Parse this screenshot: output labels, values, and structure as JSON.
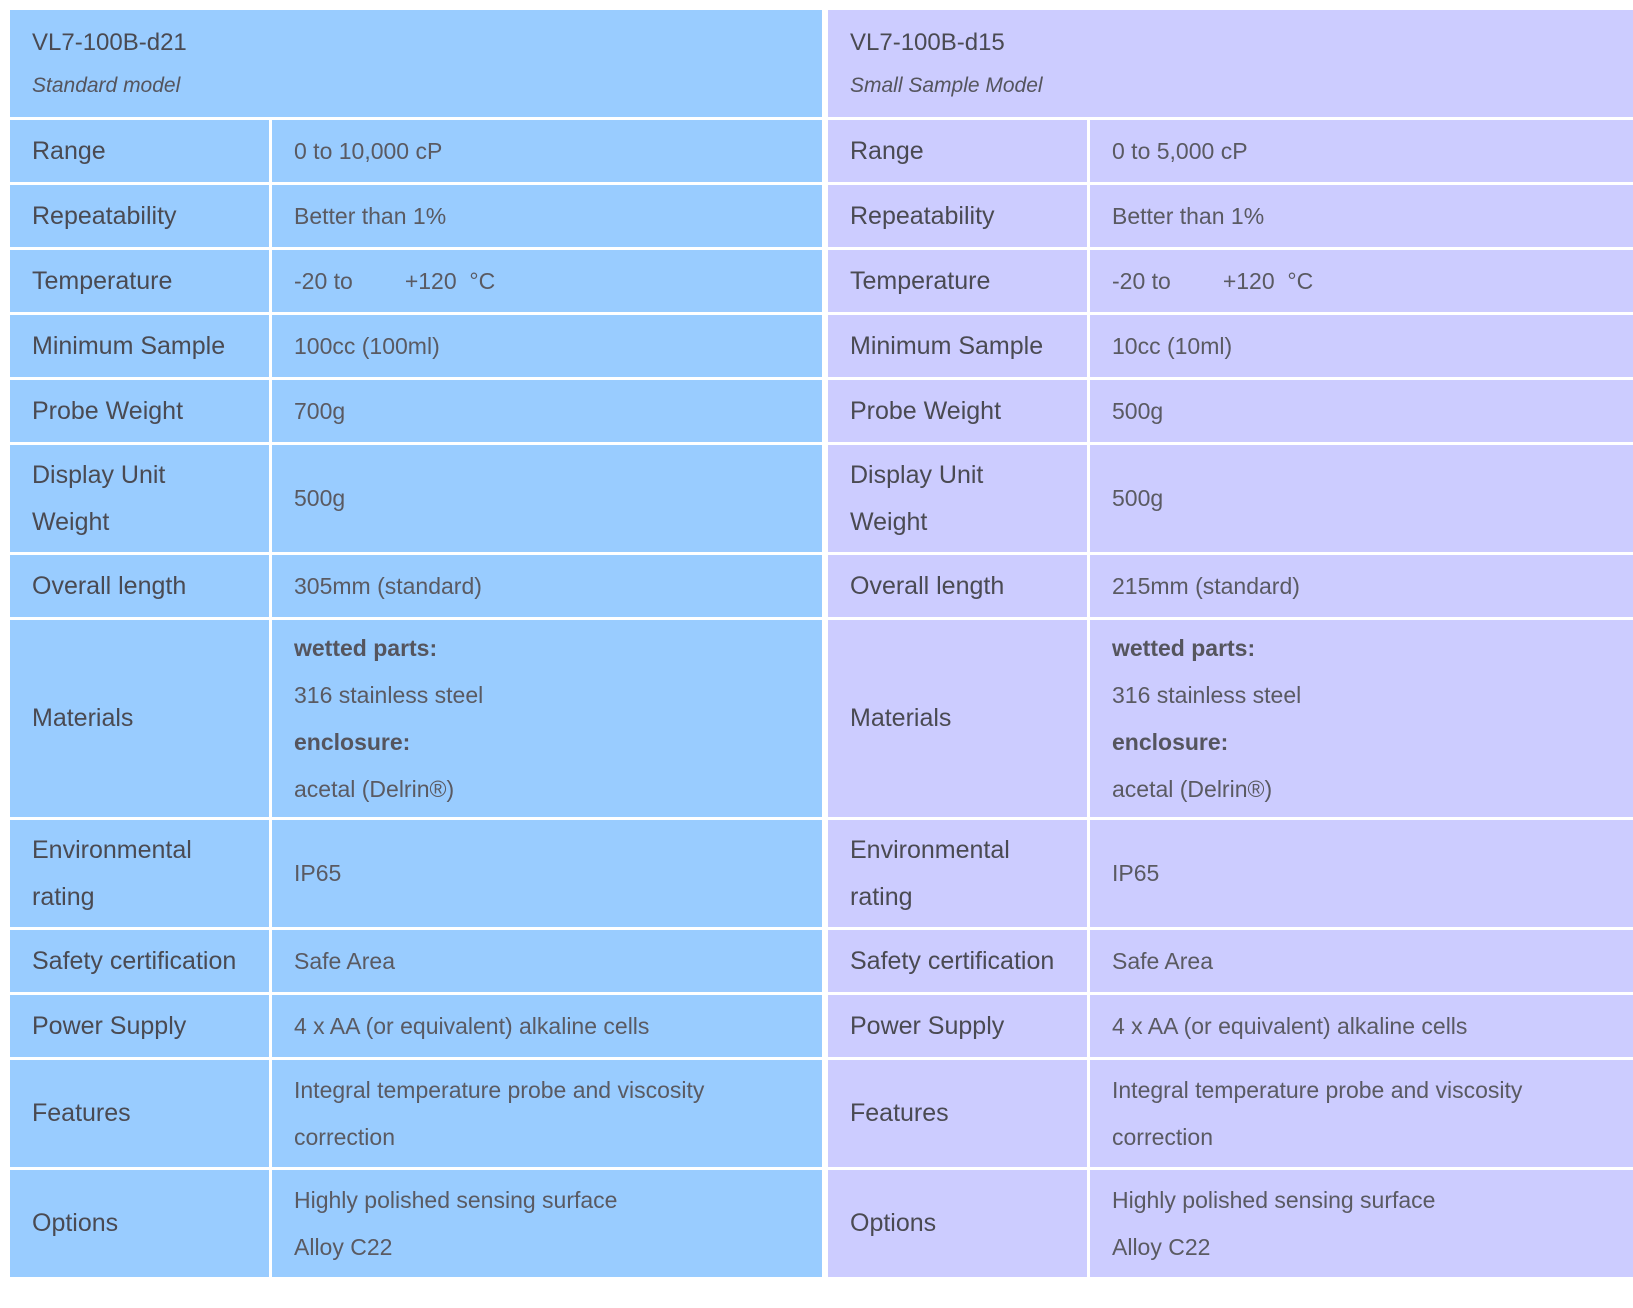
{
  "tables": [
    {
      "model": "VL7-100B-d21",
      "subtitle": "Standard model",
      "color": "#99ccff",
      "rows": {
        "range": {
          "label": "Range",
          "value": "0 to 10,000 cP"
        },
        "repeatability": {
          "label": "Repeatability",
          "value": "Better than 1%"
        },
        "temperature": {
          "label": "Temperature",
          "from": "-20 to",
          "to": "+120",
          "unit": "°C"
        },
        "min_sample": {
          "label": "Minimum Sample",
          "value": "100cc (100ml)"
        },
        "probe_weight": {
          "label": "Probe Weight",
          "value": "700g"
        },
        "display_weight": {
          "label_line1": "Display Unit",
          "label_line2": "Weight",
          "value": "500g"
        },
        "overall_length": {
          "label": "Overall length",
          "value": "305mm (standard)"
        },
        "materials": {
          "label": "Materials",
          "wetted_heading": "wetted parts:",
          "wetted_value": "316 stainless steel",
          "enclosure_heading": "enclosure:",
          "enclosure_value": "acetal (Delrin®)"
        },
        "environmental": {
          "label_line1": "Environmental",
          "label_line2": "rating",
          "value": "IP65"
        },
        "safety": {
          "label": "Safety certification",
          "value": "Safe Area"
        },
        "power": {
          "label": "Power Supply",
          "value": "4 x AA (or equivalent) alkaline cells"
        },
        "features": {
          "label": "Features",
          "line1": "Integral temperature probe and viscosity",
          "line2": "correction"
        },
        "options": {
          "label": "Options",
          "line1": "Highly polished sensing surface",
          "line2": "Alloy C22"
        }
      }
    },
    {
      "model": "VL7-100B-d15",
      "subtitle": "Small Sample Model",
      "color": "#ccccff",
      "rows": {
        "range": {
          "label": "Range",
          "value": "0 to 5,000 cP"
        },
        "repeatability": {
          "label": "Repeatability",
          "value": "Better than 1%"
        },
        "temperature": {
          "label": "Temperature",
          "from": "-20 to",
          "to": "+120",
          "unit": "°C"
        },
        "min_sample": {
          "label": "Minimum Sample",
          "value": "10cc (10ml)"
        },
        "probe_weight": {
          "label": "Probe Weight",
          "value": "500g"
        },
        "display_weight": {
          "label_line1": "Display Unit",
          "label_line2": "Weight",
          "value": "500g"
        },
        "overall_length": {
          "label": "Overall length",
          "value": "215mm (standard)"
        },
        "materials": {
          "label": "Materials",
          "wetted_heading": "wetted parts:",
          "wetted_value": "316 stainless steel",
          "enclosure_heading": "enclosure:",
          "enclosure_value": "acetal (Delrin®)"
        },
        "environmental": {
          "label_line1": "Environmental",
          "label_line2": "rating",
          "value": "IP65"
        },
        "safety": {
          "label": "Safety certification",
          "value": "Safe Area"
        },
        "power": {
          "label": "Power Supply",
          "value": "4 x AA (or equivalent) alkaline cells"
        },
        "features": {
          "label": "Features",
          "line1": "Integral temperature probe and viscosity",
          "line2": "correction"
        },
        "options": {
          "label": "Options",
          "line1": "Highly polished sensing surface",
          "line2": "Alloy C22"
        }
      }
    }
  ]
}
